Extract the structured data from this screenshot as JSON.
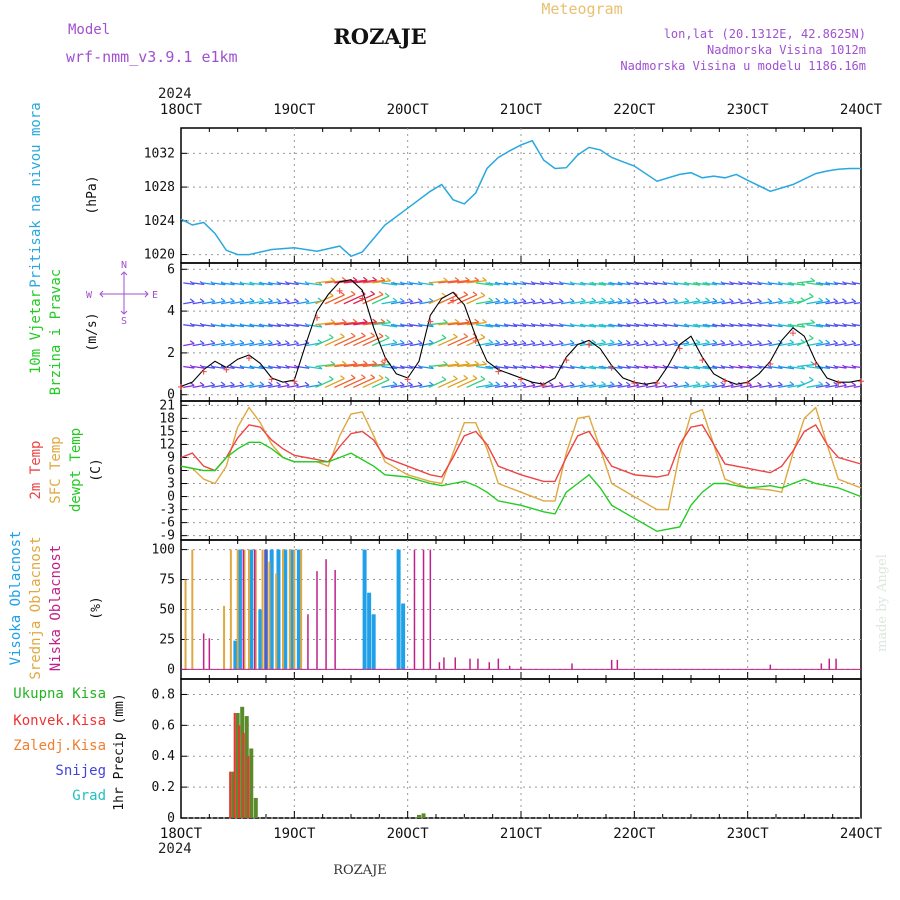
{
  "header": {
    "model_label": "Model",
    "model_name": "wrf-nmm_v3.9.1  e1km",
    "station": "ROZAJE",
    "meteogram": "Meteogram",
    "lonlat": "lon,lat (20.1312E, 42.8625N)",
    "altitude": "Nadmorska Visina 1012m",
    "model_altitude": "Nadmorska Visina u modelu 1186.16m",
    "year_top": "2024",
    "year_bottom": "2024",
    "footer_station": "ROZAJE",
    "watermark": "made by Angel"
  },
  "colors": {
    "pressure": "#29a8e0",
    "temp2m": "#ee4444",
    "sfc": "#e0a840",
    "dewpt": "#22cc22",
    "cloud_high": "#1fa0e8",
    "cloud_mid": "#e0a840",
    "cloud_low": "#c0208a",
    "total_precip": "#22b422",
    "convective": "#ee3333",
    "frozen": "#f08030",
    "snow": "#4444dd",
    "hail": "#22c0c0",
    "model_color": "#a050d0"
  },
  "chart_data": [
    {
      "type": "line",
      "panel": "pressure",
      "xticks": [
        "18OCT",
        "19OCT",
        "20OCT",
        "21OCT",
        "22OCT",
        "23OCT",
        "24OCT"
      ],
      "ylabel": "(hPa)",
      "side_label": "Pritisak na nivou mora",
      "yticks": [
        1020,
        1024,
        1028,
        1032
      ],
      "ylim": [
        1019,
        1035
      ],
      "series": [
        {
          "x": [
            0,
            0.1,
            0.2,
            0.3,
            0.4,
            0.5,
            0.6,
            0.8,
            1.0,
            1.2,
            1.4,
            1.5,
            1.6,
            1.8,
            2.0,
            2.2,
            2.3,
            2.4,
            2.5,
            2.6,
            2.7,
            2.8,
            2.9,
            3.0,
            3.1,
            3.2,
            3.3,
            3.4,
            3.5,
            3.6,
            3.7,
            3.8,
            3.9,
            4.0,
            4.2,
            4.4,
            4.5,
            4.6,
            4.7,
            4.8,
            4.9,
            5.0,
            5.2,
            5.4,
            5.6,
            5.7,
            5.8,
            5.9,
            6.0
          ],
          "y": [
            1024.2,
            1023.5,
            1023.8,
            1022.5,
            1020.5,
            1020,
            1020,
            1020.6,
            1020.8,
            1020.4,
            1021,
            1019.8,
            1020.3,
            1023.5,
            1025.5,
            1027.5,
            1028.3,
            1026.5,
            1026,
            1027.3,
            1030.2,
            1031.5,
            1032.3,
            1033,
            1033.5,
            1031.2,
            1030.2,
            1030.3,
            1031.8,
            1032.7,
            1032.4,
            1031.5,
            1031,
            1030.5,
            1028.7,
            1029.5,
            1029.7,
            1029.1,
            1029.3,
            1029.1,
            1029.5,
            1028.8,
            1027.5,
            1028.3,
            1029.6,
            1029.9,
            1030.1,
            1030.2,
            1030.2
          ]
        }
      ]
    },
    {
      "type": "line",
      "panel": "wind",
      "ylabel": "(m/s)",
      "side_label": [
        "10m  Vjetar",
        "Brzina i Pravac"
      ],
      "compass": [
        "N",
        "W",
        "E",
        "S"
      ],
      "yticks": [
        0,
        2,
        4,
        6
      ],
      "ylim": [
        -0.3,
        6.3
      ],
      "series": [
        {
          "x": [
            0,
            0.1,
            0.2,
            0.3,
            0.4,
            0.5,
            0.6,
            0.7,
            0.8,
            0.9,
            1.0,
            1.1,
            1.2,
            1.3,
            1.4,
            1.5,
            1.6,
            1.7,
            1.8,
            1.9,
            2.0,
            2.1,
            2.2,
            2.3,
            2.4,
            2.5,
            2.6,
            2.7,
            2.8,
            2.9,
            3.0,
            3.1,
            3.2,
            3.3,
            3.4,
            3.5,
            3.6,
            3.7,
            3.8,
            3.9,
            4.0,
            4.1,
            4.2,
            4.3,
            4.4,
            4.5,
            4.6,
            4.7,
            4.8,
            4.9,
            5.0,
            5.1,
            5.2,
            5.3,
            5.4,
            5.5,
            5.6,
            5.7,
            5.8,
            5.9,
            6.0
          ],
          "y": [
            0.4,
            0.6,
            1.2,
            1.6,
            1.3,
            1.7,
            1.9,
            1.5,
            0.8,
            0.6,
            0.7,
            2.4,
            4.0,
            4.8,
            5.4,
            5.5,
            5.0,
            3.2,
            1.8,
            1.0,
            0.8,
            1.6,
            3.8,
            4.6,
            4.9,
            4.3,
            2.8,
            1.6,
            1.2,
            1.0,
            0.8,
            0.6,
            0.5,
            0.8,
            1.8,
            2.4,
            2.6,
            2.2,
            1.4,
            0.8,
            0.6,
            0.5,
            0.6,
            1.4,
            2.4,
            2.8,
            1.8,
            1.0,
            0.7,
            0.5,
            0.6,
            1.0,
            1.6,
            2.6,
            3.2,
            2.8,
            1.6,
            0.8,
            0.6,
            0.6,
            0.7
          ]
        }
      ]
    },
    {
      "type": "line",
      "panel": "temperature",
      "ylabel": "(C)",
      "side_label": [
        "2m Temp",
        "SFC Temp",
        "dewpt Temp"
      ],
      "yticks": [
        -9,
        -6,
        -3,
        0,
        3,
        6,
        9,
        12,
        15,
        18,
        21
      ],
      "ylim": [
        -10,
        22
      ],
      "series": [
        {
          "name": "2m Temp",
          "x": [
            0,
            0.1,
            0.2,
            0.3,
            0.4,
            0.5,
            0.6,
            0.7,
            0.8,
            0.9,
            1.0,
            1.2,
            1.3,
            1.4,
            1.5,
            1.6,
            1.7,
            1.8,
            2.0,
            2.2,
            2.3,
            2.4,
            2.5,
            2.6,
            2.7,
            2.8,
            3.0,
            3.2,
            3.3,
            3.4,
            3.5,
            3.6,
            3.7,
            3.8,
            4.0,
            4.2,
            4.3,
            4.4,
            4.5,
            4.6,
            4.7,
            4.8,
            5.0,
            5.2,
            5.3,
            5.4,
            5.5,
            5.6,
            5.7,
            5.8,
            6.0
          ],
          "y": [
            9,
            10,
            7,
            6,
            9,
            13.5,
            16.5,
            16,
            13,
            11,
            9.5,
            8.5,
            8,
            11.5,
            14.5,
            15,
            13,
            9,
            7,
            5,
            4.5,
            9,
            14,
            15,
            12,
            7,
            5,
            3.5,
            3.5,
            9,
            14,
            15,
            11,
            7,
            5,
            4.5,
            5,
            12,
            16,
            16.5,
            12,
            7.5,
            6.5,
            5.5,
            7,
            10.5,
            15,
            16.5,
            12,
            9,
            7.5
          ]
        },
        {
          "name": "SFC Temp",
          "x": [
            0,
            0.1,
            0.2,
            0.3,
            0.4,
            0.5,
            0.6,
            0.7,
            0.8,
            0.9,
            1.0,
            1.2,
            1.3,
            1.4,
            1.5,
            1.6,
            1.7,
            1.8,
            2.0,
            2.2,
            2.3,
            2.4,
            2.5,
            2.6,
            2.7,
            2.8,
            3.0,
            3.2,
            3.3,
            3.4,
            3.5,
            3.6,
            3.7,
            3.8,
            4.0,
            4.2,
            4.3,
            4.4,
            4.5,
            4.6,
            4.7,
            4.8,
            5.0,
            5.2,
            5.3,
            5.4,
            5.5,
            5.6,
            5.7,
            5.8,
            6.0
          ],
          "y": [
            7,
            6.5,
            4,
            3,
            7,
            16,
            20.5,
            17,
            12,
            9,
            8,
            8,
            7,
            14,
            19,
            19.5,
            14,
            8,
            5,
            3.5,
            3,
            10,
            17,
            17,
            11,
            3,
            1,
            -1,
            -1,
            10,
            18,
            18.5,
            11,
            3,
            0,
            -3,
            -3,
            10,
            19,
            20,
            12,
            4,
            2,
            1.5,
            1,
            10,
            18,
            20.5,
            12,
            4,
            2
          ]
        },
        {
          "name": "dewpt Temp",
          "x": [
            0,
            0.1,
            0.2,
            0.3,
            0.4,
            0.5,
            0.6,
            0.7,
            0.8,
            0.9,
            1.0,
            1.2,
            1.3,
            1.4,
            1.5,
            1.6,
            1.7,
            1.8,
            2.0,
            2.2,
            2.3,
            2.4,
            2.5,
            2.6,
            2.7,
            2.8,
            3.0,
            3.2,
            3.3,
            3.4,
            3.5,
            3.6,
            3.7,
            3.8,
            4.0,
            4.2,
            4.3,
            4.4,
            4.5,
            4.6,
            4.7,
            4.8,
            5.0,
            5.2,
            5.3,
            5.4,
            5.5,
            5.6,
            5.7,
            5.8,
            6.0
          ],
          "y": [
            7,
            6.5,
            6,
            6,
            9,
            11,
            12.5,
            12.5,
            11,
            9,
            8,
            8,
            8,
            9,
            10,
            8.5,
            7,
            5,
            4.5,
            3,
            2.5,
            3,
            3.5,
            2.5,
            1,
            -1,
            -2,
            -3.5,
            -4,
            1,
            3,
            5,
            2,
            -2,
            -5,
            -8,
            -7.5,
            -7,
            -2,
            1,
            3,
            3,
            2,
            2.5,
            2,
            3,
            4,
            3,
            2.5,
            2,
            0
          ]
        }
      ]
    },
    {
      "type": "bar",
      "panel": "clouds",
      "ylabel": "(%)",
      "side_label": [
        "Visoka  Oblacnost",
        "Srednja  Oblacnost",
        "Niska  Oblacnost"
      ],
      "yticks": [
        0,
        25,
        50,
        75,
        100
      ],
      "ylim": [
        0,
        100
      ],
      "series": [
        {
          "name": "Visoka  Oblacnost",
          "x": [
            0.48,
            0.52,
            0.62,
            0.7,
            0.75,
            0.8,
            0.86,
            0.92,
            0.98,
            1.04,
            1.62,
            1.66,
            1.7,
            1.92,
            1.96
          ],
          "y": [
            24,
            100,
            100,
            50,
            100,
            100,
            100,
            100,
            100,
            100,
            100,
            64,
            46,
            100,
            55
          ]
        },
        {
          "name": "Srednja  Oblacnost",
          "x": [
            0.04,
            0.1,
            0.38,
            0.44,
            0.5,
            0.56,
            0.6,
            0.66,
            0.72,
            0.78,
            0.84,
            0.9,
            0.96,
            1.0,
            1.06
          ],
          "y": [
            75,
            100,
            53,
            100,
            100,
            100,
            100,
            100,
            100,
            90,
            80,
            100,
            100,
            100,
            100
          ]
        },
        {
          "name": "Niska  Oblacnost",
          "x": [
            0.2,
            0.25,
            0.55,
            0.65,
            0.75,
            1.12,
            1.2,
            1.28,
            1.36,
            2.06,
            2.14,
            2.2,
            2.28,
            2.32,
            2.42,
            2.55,
            2.62,
            2.72,
            2.8,
            2.9,
            3.0,
            3.45,
            3.8,
            3.85,
            5.2,
            5.65,
            5.72,
            5.78
          ],
          "y": [
            30,
            26,
            100,
            100,
            100,
            46,
            82,
            92,
            83,
            100,
            100,
            100,
            6,
            10,
            10,
            9,
            9,
            6,
            9,
            3,
            2,
            5,
            8,
            8,
            4,
            5,
            9,
            9
          ]
        }
      ]
    },
    {
      "type": "bar",
      "panel": "precipitation",
      "ylabel": "1hr Precip (mm)",
      "side_label": [
        "Ukupna  Kisa",
        "Konvek.Kisa",
        "Zaledj.Kisa",
        "Snijeg",
        "Grad"
      ],
      "yticks": [
        0,
        0.2,
        0.4,
        0.6,
        0.8
      ],
      "ylim": [
        0,
        0.9
      ],
      "series": [
        {
          "name": "Ukupna  Kisa",
          "x": [
            0.46,
            0.5,
            0.54,
            0.58,
            0.62,
            0.66,
            0.7,
            2.1,
            2.14
          ],
          "y": [
            0.3,
            0.68,
            0.72,
            0.66,
            0.45,
            0.13,
            0,
            0.02,
            0.03
          ]
        },
        {
          "name": "Konvek.Kisa",
          "x": [
            0.46,
            0.5,
            0.54,
            0.58,
            0.62
          ],
          "y": [
            0.3,
            0.68,
            0.6,
            0.55,
            0.4
          ]
        }
      ]
    }
  ]
}
